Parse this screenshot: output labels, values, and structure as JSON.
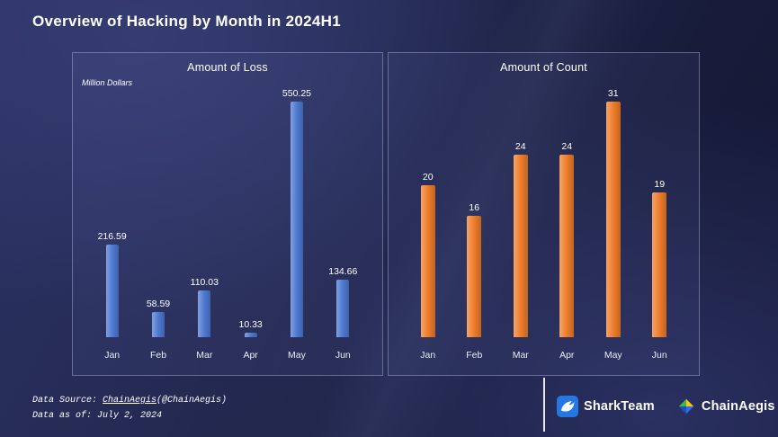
{
  "header": {
    "title": "Overview of Hacking by Month in 2024H1"
  },
  "chart_data": [
    {
      "type": "bar",
      "title": "Amount of Loss",
      "ylabel": "Million Dollars",
      "xlabel": "",
      "categories": [
        "Jan",
        "Feb",
        "Mar",
        "Apr",
        "May",
        "Jun"
      ],
      "values": [
        216.59,
        58.59,
        110.03,
        10.33,
        550.25,
        134.66
      ],
      "value_labels": [
        "216.59",
        "58.59",
        "110.03",
        "10.33",
        "550.25",
        "134.66"
      ],
      "bar_color": "#4e79d2",
      "ylim": [
        0,
        550.25
      ],
      "grid": false,
      "legend": "none"
    },
    {
      "type": "bar",
      "title": "Amount of Count",
      "ylabel": "",
      "xlabel": "",
      "categories": [
        "Jan",
        "Feb",
        "Mar",
        "Apr",
        "May",
        "Jun"
      ],
      "values": [
        20,
        16,
        24,
        24,
        31,
        19
      ],
      "value_labels": [
        "20",
        "16",
        "24",
        "24",
        "31",
        "19"
      ],
      "bar_color": "#ef7d2b",
      "ylim": [
        0,
        31
      ],
      "grid": false,
      "legend": "none"
    }
  ],
  "footer": {
    "source_prefix": "Data Source: ",
    "source_link": "ChainAegis",
    "source_suffix": "(@ChainAegis)",
    "as_of_label": "Data as of: July 2, 2024",
    "brands": {
      "sharkteam": "SharkTeam",
      "chainaegis": "ChainAegis"
    }
  },
  "colors": {
    "loss_bar": "#4e79d2",
    "count_bar": "#ef7d2b",
    "sharkteam_blue": "#2577e3",
    "chainaegis_green": "#3cb54a",
    "chainaegis_yellow": "#ffc20e",
    "chainaegis_blue": "#2e6de6",
    "chainaegis_darkblue": "#1b4fc4"
  }
}
